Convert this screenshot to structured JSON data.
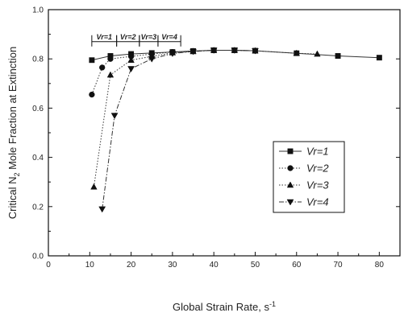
{
  "chart_data": {
    "type": "line",
    "xlabel": "Global Strain Rate, s",
    "xlabel_superscript": "-1",
    "ylabel_prefix": "Critical N",
    "ylabel_subscript": "2",
    "ylabel_suffix": " Mole Fraction at Extinction",
    "xlim": [
      0,
      85
    ],
    "ylim": [
      0.0,
      1.0
    ],
    "xticks": [
      "0",
      "10",
      "20",
      "30",
      "40",
      "50",
      "60",
      "70",
      "80"
    ],
    "xtick_values": [
      0,
      10,
      20,
      30,
      40,
      50,
      60,
      70,
      80
    ],
    "yticks": [
      "0.0",
      "0.2",
      "0.4",
      "0.6",
      "0.8",
      "1.0"
    ],
    "ytick_values": [
      0.0,
      0.2,
      0.4,
      0.6,
      0.8,
      1.0
    ],
    "grid": false,
    "legend_position": "right-middle",
    "series": [
      {
        "name": "Vr=1",
        "marker": "square",
        "line_style": "solid",
        "x": [
          10.5,
          15,
          20,
          25,
          30,
          35,
          40,
          45,
          50,
          60,
          70,
          80
        ],
        "y": [
          0.795,
          0.812,
          0.82,
          0.824,
          0.828,
          0.832,
          0.835,
          0.835,
          0.833,
          0.823,
          0.812,
          0.805
        ]
      },
      {
        "name": "Vr=2",
        "marker": "circle",
        "line_style": "dotted",
        "x": [
          10.5,
          13,
          15,
          20,
          25,
          30,
          35,
          40,
          45,
          50
        ],
        "y": [
          0.655,
          0.765,
          0.8,
          0.81,
          0.82,
          0.828,
          0.832,
          0.835,
          0.835,
          0.833
        ]
      },
      {
        "name": "Vr=3",
        "marker": "triangle-up",
        "line_style": "dotted",
        "x": [
          11,
          15,
          20,
          25,
          30,
          35,
          40,
          45,
          50,
          60,
          65
        ],
        "y": [
          0.28,
          0.735,
          0.795,
          0.81,
          0.825,
          0.83,
          0.835,
          0.835,
          0.833,
          0.823,
          0.82
        ]
      },
      {
        "name": "Vr=4",
        "marker": "triangle-down",
        "line_style": "dashdot",
        "x": [
          13,
          16,
          20,
          25,
          30,
          35,
          40,
          45,
          50
        ],
        "y": [
          0.19,
          0.57,
          0.76,
          0.8,
          0.822,
          0.83,
          0.835,
          0.835,
          0.833
        ]
      }
    ],
    "annotations": [
      {
        "text": "Vr=1",
        "x_from": 10.5,
        "x_to": 16.5
      },
      {
        "text": "Vr=2",
        "x_from": 16.5,
        "x_to": 22
      },
      {
        "text": "Vr=3",
        "x_from": 22,
        "x_to": 26.5
      },
      {
        "text": "Vr=4",
        "x_from": 26.5,
        "x_to": 32
      }
    ]
  }
}
